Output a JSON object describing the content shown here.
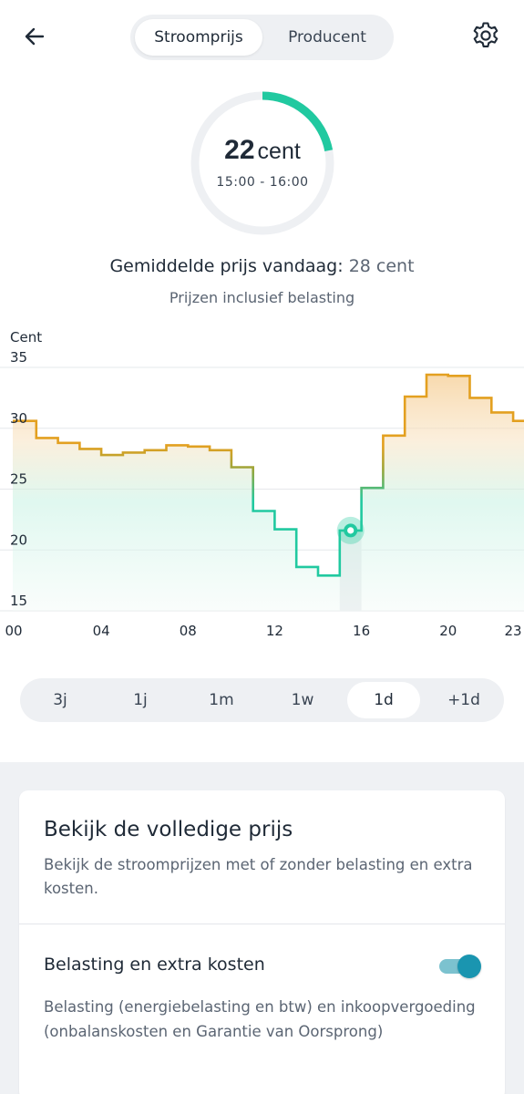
{
  "header": {
    "tabs": [
      {
        "label": "Stroomprijs",
        "active": true
      },
      {
        "label": "Producent",
        "active": false
      }
    ],
    "back_icon": "arrow-left-icon",
    "settings_icon": "gear-icon"
  },
  "gauge": {
    "value": "22",
    "unit": "cent",
    "time_range": "15:00 - 16:00",
    "fill_fraction": 0.22,
    "color": "#21c9a0"
  },
  "summary": {
    "average_label": "Gemiddelde prijs vandaag:",
    "average_value": "28 cent",
    "tax_note": "Prijzen inclusief belasting"
  },
  "chart_data": {
    "type": "line",
    "step": true,
    "ylabel": "Cent",
    "ylim": [
      15,
      35
    ],
    "yticks": [
      "35",
      "30",
      "25",
      "20",
      "15"
    ],
    "xlim": [
      0,
      23.5
    ],
    "xticks": [
      "00",
      "04",
      "08",
      "12",
      "16",
      "20",
      "23"
    ],
    "grid": true,
    "series": [
      {
        "x": [
          0,
          1,
          2,
          3,
          4,
          5,
          6,
          7,
          8,
          9,
          10,
          11,
          12,
          13,
          14,
          15,
          16,
          17,
          18,
          19,
          20,
          21,
          22,
          23
        ],
        "values": [
          30.6,
          29.2,
          28.8,
          28.3,
          27.8,
          28.0,
          28.2,
          28.6,
          28.5,
          28.2,
          26.8,
          23.2,
          21.7,
          18.6,
          17.9,
          21.6,
          25.1,
          29.4,
          32.6,
          34.4,
          34.3,
          32.5,
          31.3,
          30.6
        ]
      }
    ],
    "selected": {
      "hour": 15,
      "value": 21.6
    },
    "colors": {
      "low": "#21c9a0",
      "mid": "#9aa53a",
      "high": "#e3a020"
    }
  },
  "ranges": [
    {
      "label": "3j",
      "active": false
    },
    {
      "label": "1j",
      "active": false
    },
    {
      "label": "1m",
      "active": false
    },
    {
      "label": "1w",
      "active": false
    },
    {
      "label": "1d",
      "active": true
    },
    {
      "label": "+1d",
      "active": false
    }
  ],
  "card": {
    "title": "Bekijk de volledige prijs",
    "description": "Bekijk de stroomprijzen met of zonder belasting en extra kosten.",
    "toggle_label": "Belasting en extra kosten",
    "toggle_on": true,
    "toggle_description": "Belasting (energiebelasting en btw) en inkoopvergoeding (onbalanskosten en Garantie van Oorsprong)"
  }
}
